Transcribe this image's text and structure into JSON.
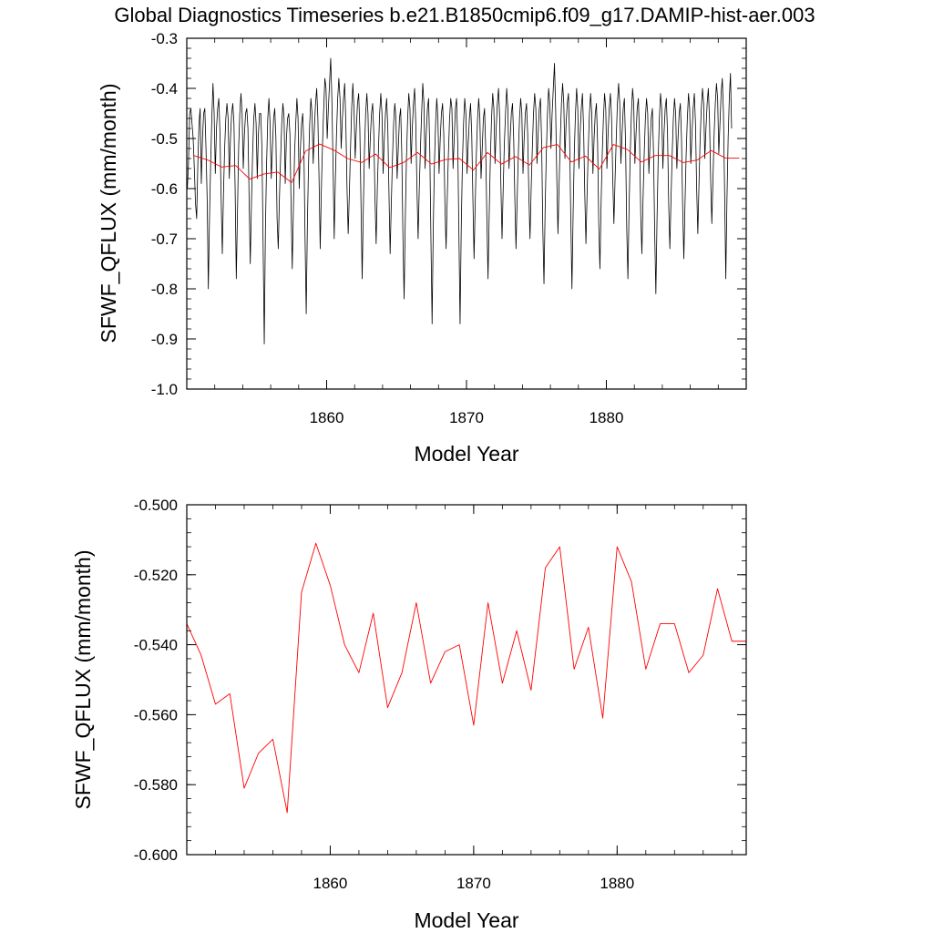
{
  "title": "Global Diagnostics Timeseries b.e21.B1850cmip6.f09_g17.DAMIP-hist-aer.003",
  "colors": {
    "monthly": "#000000",
    "annual": "#ff0000",
    "axes": "#000000"
  },
  "chart_data": [
    {
      "type": "line",
      "title": "Global Diagnostics Timeseries b.e21.B1850cmip6.f09_g17.DAMIP-hist-aer.003",
      "xlabel": "Model Year",
      "ylabel": "SFWF_QFLUX (mm/month)",
      "xlim": [
        1850,
        1890
      ],
      "ylim": [
        -1.0,
        -0.3
      ],
      "xticks": [
        "1860",
        "1870",
        "1880"
      ],
      "yticks": [
        "-0.3",
        "-0.4",
        "-0.5",
        "-0.6",
        "-0.7",
        "-0.8",
        "-0.9",
        "-1.0"
      ],
      "grid": false,
      "series": [
        {
          "color": "#000000",
          "monthly_of_year_pattern_note": "",
          "x_start": 1850.04,
          "x_step": 0.0833333,
          "values": [
            -0.6,
            -0.55,
            -0.45,
            -0.44,
            -0.47,
            -0.5,
            -0.56,
            -0.63,
            -0.66,
            -0.55,
            -0.47,
            -0.44,
            -0.59,
            -0.5,
            -0.45,
            -0.44,
            -0.52,
            -0.62,
            -0.8,
            -0.66,
            -0.55,
            -0.46,
            -0.39,
            -0.45,
            -0.57,
            -0.48,
            -0.44,
            -0.42,
            -0.49,
            -0.62,
            -0.73,
            -0.61,
            -0.52,
            -0.46,
            -0.43,
            -0.46,
            -0.58,
            -0.5,
            -0.45,
            -0.43,
            -0.47,
            -0.6,
            -0.78,
            -0.65,
            -0.52,
            -0.45,
            -0.41,
            -0.45,
            -0.56,
            -0.49,
            -0.45,
            -0.44,
            -0.48,
            -0.62,
            -0.75,
            -0.63,
            -0.53,
            -0.46,
            -0.43,
            -0.47,
            -0.58,
            -0.49,
            -0.45,
            -0.45,
            -0.52,
            -0.71,
            -0.91,
            -0.68,
            -0.55,
            -0.46,
            -0.42,
            -0.47,
            -0.58,
            -0.52,
            -0.46,
            -0.44,
            -0.5,
            -0.66,
            -0.72,
            -0.62,
            -0.54,
            -0.47,
            -0.43,
            -0.46,
            -0.59,
            -0.5,
            -0.46,
            -0.45,
            -0.49,
            -0.63,
            -0.76,
            -0.64,
            -0.53,
            -0.47,
            -0.42,
            -0.46,
            -0.6,
            -0.52,
            -0.47,
            -0.45,
            -0.52,
            -0.7,
            -0.85,
            -0.67,
            -0.55,
            -0.47,
            -0.42,
            -0.45,
            -0.55,
            -0.48,
            -0.43,
            -0.4,
            -0.46,
            -0.58,
            -0.72,
            -0.6,
            -0.51,
            -0.44,
            -0.38,
            -0.4,
            -0.5,
            -0.44,
            -0.39,
            -0.34,
            -0.42,
            -0.55,
            -0.7,
            -0.58,
            -0.49,
            -0.42,
            -0.38,
            -0.42,
            -0.52,
            -0.46,
            -0.42,
            -0.39,
            -0.47,
            -0.6,
            -0.69,
            -0.61,
            -0.52,
            -0.44,
            -0.39,
            -0.44,
            -0.54,
            -0.48,
            -0.43,
            -0.41,
            -0.48,
            -0.63,
            -0.78,
            -0.64,
            -0.52,
            -0.45,
            -0.41,
            -0.45,
            -0.56,
            -0.5,
            -0.45,
            -0.43,
            -0.49,
            -0.62,
            -0.71,
            -0.6,
            -0.52,
            -0.45,
            -0.41,
            -0.45,
            -0.57,
            -0.5,
            -0.45,
            -0.42,
            -0.48,
            -0.61,
            -0.73,
            -0.63,
            -0.54,
            -0.47,
            -0.43,
            -0.46,
            -0.58,
            -0.52,
            -0.46,
            -0.44,
            -0.53,
            -0.7,
            -0.82,
            -0.66,
            -0.54,
            -0.46,
            -0.41,
            -0.44,
            -0.55,
            -0.48,
            -0.43,
            -0.4,
            -0.47,
            -0.6,
            -0.7,
            -0.6,
            -0.52,
            -0.45,
            -0.39,
            -0.43,
            -0.56,
            -0.49,
            -0.44,
            -0.42,
            -0.52,
            -0.7,
            -0.87,
            -0.68,
            -0.55,
            -0.47,
            -0.42,
            -0.46,
            -0.57,
            -0.5,
            -0.45,
            -0.43,
            -0.49,
            -0.63,
            -0.72,
            -0.62,
            -0.53,
            -0.46,
            -0.42,
            -0.44,
            -0.56,
            -0.5,
            -0.44,
            -0.42,
            -0.51,
            -0.69,
            -0.87,
            -0.68,
            -0.55,
            -0.47,
            -0.42,
            -0.45,
            -0.57,
            -0.51,
            -0.46,
            -0.43,
            -0.49,
            -0.62,
            -0.74,
            -0.63,
            -0.53,
            -0.46,
            -0.42,
            -0.46,
            -0.58,
            -0.52,
            -0.46,
            -0.44,
            -0.52,
            -0.66,
            -0.78,
            -0.65,
            -0.54,
            -0.46,
            -0.41,
            -0.44,
            -0.55,
            -0.48,
            -0.43,
            -0.4,
            -0.46,
            -0.59,
            -0.7,
            -0.6,
            -0.51,
            -0.45,
            -0.4,
            -0.44,
            -0.56,
            -0.5,
            -0.45,
            -0.43,
            -0.5,
            -0.62,
            -0.72,
            -0.62,
            -0.53,
            -0.46,
            -0.42,
            -0.45,
            -0.57,
            -0.5,
            -0.45,
            -0.43,
            -0.49,
            -0.61,
            -0.7,
            -0.6,
            -0.52,
            -0.45,
            -0.41,
            -0.44,
            -0.55,
            -0.49,
            -0.44,
            -0.42,
            -0.51,
            -0.68,
            -0.79,
            -0.64,
            -0.53,
            -0.45,
            -0.4,
            -0.43,
            -0.52,
            -0.45,
            -0.4,
            -0.35,
            -0.44,
            -0.58,
            -0.69,
            -0.59,
            -0.5,
            -0.43,
            -0.39,
            -0.43,
            -0.54,
            -0.47,
            -0.43,
            -0.41,
            -0.5,
            -0.66,
            -0.8,
            -0.65,
            -0.53,
            -0.45,
            -0.4,
            -0.44,
            -0.56,
            -0.49,
            -0.44,
            -0.41,
            -0.48,
            -0.61,
            -0.71,
            -0.61,
            -0.52,
            -0.45,
            -0.41,
            -0.45,
            -0.57,
            -0.5,
            -0.45,
            -0.43,
            -0.51,
            -0.67,
            -0.76,
            -0.63,
            -0.53,
            -0.46,
            -0.41,
            -0.44,
            -0.56,
            -0.49,
            -0.44,
            -0.41,
            -0.46,
            -0.58,
            -0.67,
            -0.58,
            -0.5,
            -0.43,
            -0.39,
            -0.43,
            -0.55,
            -0.49,
            -0.44,
            -0.42,
            -0.51,
            -0.68,
            -0.78,
            -0.64,
            -0.53,
            -0.45,
            -0.4,
            -0.43,
            -0.55,
            -0.49,
            -0.44,
            -0.42,
            -0.5,
            -0.65,
            -0.73,
            -0.62,
            -0.53,
            -0.46,
            -0.42,
            -0.45,
            -0.57,
            -0.51,
            -0.46,
            -0.44,
            -0.53,
            -0.69,
            -0.81,
            -0.66,
            -0.54,
            -0.46,
            -0.41,
            -0.44,
            -0.56,
            -0.49,
            -0.44,
            -0.42,
            -0.49,
            -0.63,
            -0.72,
            -0.62,
            -0.53,
            -0.46,
            -0.42,
            -0.45,
            -0.56,
            -0.5,
            -0.45,
            -0.43,
            -0.5,
            -0.64,
            -0.74,
            -0.63,
            -0.53,
            -0.46,
            -0.41,
            -0.44,
            -0.55,
            -0.49,
            -0.44,
            -0.41,
            -0.47,
            -0.6,
            -0.69,
            -0.59,
            -0.5,
            -0.44,
            -0.4,
            -0.43,
            -0.54,
            -0.48,
            -0.43,
            -0.4,
            -0.46,
            -0.58,
            -0.67,
            -0.58,
            -0.49,
            -0.43,
            -0.39,
            -0.42,
            -0.53,
            -0.47,
            -0.41,
            -0.38,
            -0.45,
            -0.61,
            -0.78,
            -0.62,
            -0.5,
            -0.42,
            -0.37,
            -0.48
          ]
        },
        {
          "color": "#ff0000",
          "x": [
            1850.5,
            1851.5,
            1852.5,
            1853.5,
            1854.5,
            1855.5,
            1856.5,
            1857.5,
            1858.5,
            1859.5,
            1860.5,
            1861.5,
            1862.5,
            1863.5,
            1864.5,
            1865.5,
            1866.5,
            1867.5,
            1868.5,
            1869.5,
            1870.5,
            1871.5,
            1872.5,
            1873.5,
            1874.5,
            1875.5,
            1876.5,
            1877.5,
            1878.5,
            1879.5,
            1880.5,
            1881.5,
            1882.5,
            1883.5,
            1884.5,
            1885.5,
            1886.5,
            1887.5,
            1888.5,
            1889.5
          ],
          "values": [
            -0.534,
            -0.543,
            -0.557,
            -0.554,
            -0.581,
            -0.571,
            -0.567,
            -0.588,
            -0.525,
            -0.511,
            -0.523,
            -0.54,
            -0.548,
            -0.531,
            -0.558,
            -0.548,
            -0.528,
            -0.551,
            -0.542,
            -0.54,
            -0.563,
            -0.528,
            -0.551,
            -0.536,
            -0.553,
            -0.518,
            -0.512,
            -0.547,
            -0.535,
            -0.561,
            -0.512,
            -0.522,
            -0.547,
            -0.534,
            -0.534,
            -0.548,
            -0.543,
            -0.524,
            -0.539,
            -0.539
          ]
        }
      ]
    },
    {
      "type": "line",
      "xlabel": "Model Year",
      "ylabel": "SFWF_QFLUX (mm/month)",
      "xlim": [
        1850,
        1889
      ],
      "ylim": [
        -0.6,
        -0.5
      ],
      "xticks": [
        "1860",
        "1870",
        "1880"
      ],
      "yticks": [
        "-0.500",
        "-0.520",
        "-0.540",
        "-0.560",
        "-0.580",
        "-0.600"
      ],
      "grid": false,
      "series": [
        {
          "color": "#ff0000",
          "x": [
            1850,
            1851,
            1852,
            1853,
            1854,
            1855,
            1856,
            1857,
            1858,
            1859,
            1860,
            1861,
            1862,
            1863,
            1864,
            1865,
            1866,
            1867,
            1868,
            1869,
            1870,
            1871,
            1872,
            1873,
            1874,
            1875,
            1876,
            1877,
            1878,
            1879,
            1880,
            1881,
            1882,
            1883,
            1884,
            1885,
            1886,
            1887,
            1888,
            1889
          ],
          "values": [
            -0.534,
            -0.543,
            -0.557,
            -0.554,
            -0.581,
            -0.571,
            -0.567,
            -0.588,
            -0.525,
            -0.511,
            -0.523,
            -0.54,
            -0.548,
            -0.531,
            -0.558,
            -0.548,
            -0.528,
            -0.551,
            -0.542,
            -0.54,
            -0.563,
            -0.528,
            -0.551,
            -0.536,
            -0.553,
            -0.518,
            -0.512,
            -0.547,
            -0.535,
            -0.561,
            -0.512,
            -0.522,
            -0.547,
            -0.534,
            -0.534,
            -0.548,
            -0.543,
            -0.524,
            -0.539,
            -0.539
          ]
        }
      ]
    }
  ]
}
